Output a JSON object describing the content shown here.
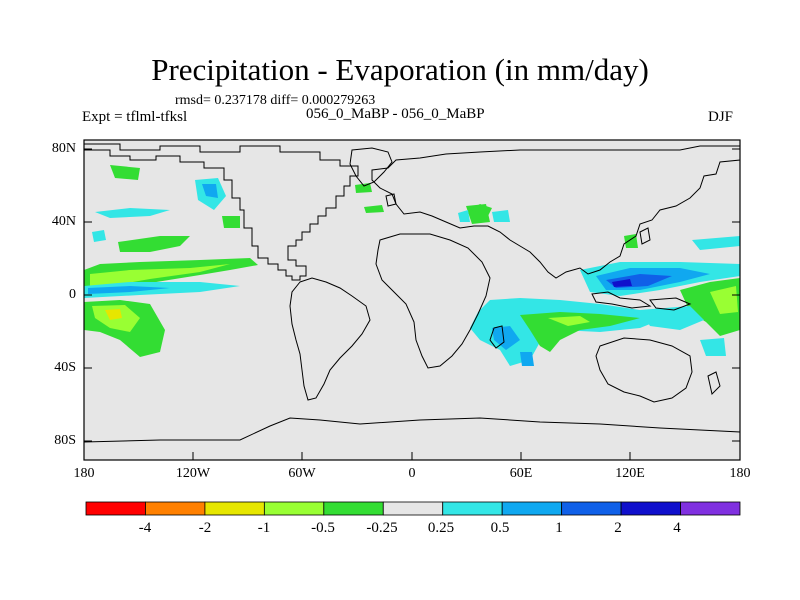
{
  "title": "Precipitation - Evaporation (in mm/day)",
  "stats": "rmsd= 0.237178 diff= 0.000279263",
  "experiment": "Expt = tflml-tfksl",
  "case_label": "056_0_MaBP - 056_0_MaBP",
  "season": "DJF",
  "lat_ticks": [
    "80N",
    "40N",
    "0",
    "40S",
    "80S"
  ],
  "lon_ticks": [
    "180",
    "120W",
    "60W",
    "0",
    "60E",
    "120E",
    "180"
  ],
  "colorbar": {
    "labels": [
      "-4",
      "-2",
      "-1",
      "-0.5",
      "-0.25",
      "0.25",
      "0.5",
      "1",
      "2",
      "4"
    ],
    "colors": [
      "#ff0000",
      "#ff8000",
      "#e6e600",
      "#99ff33",
      "#33dd33",
      "#e6e6e6",
      "#33e6e6",
      "#10a8f0",
      "#1060e8",
      "#1010cc",
      "#8030e0"
    ]
  },
  "colors": {
    "background": "#e6e6e6",
    "coast": "#000000"
  },
  "map": {
    "type": "contour map",
    "projection": "cylindrical equidistant",
    "lon_range": [
      -180,
      180
    ],
    "lat_range": [
      -90,
      90
    ],
    "variable": "P-E difference",
    "units": "mm/day"
  }
}
